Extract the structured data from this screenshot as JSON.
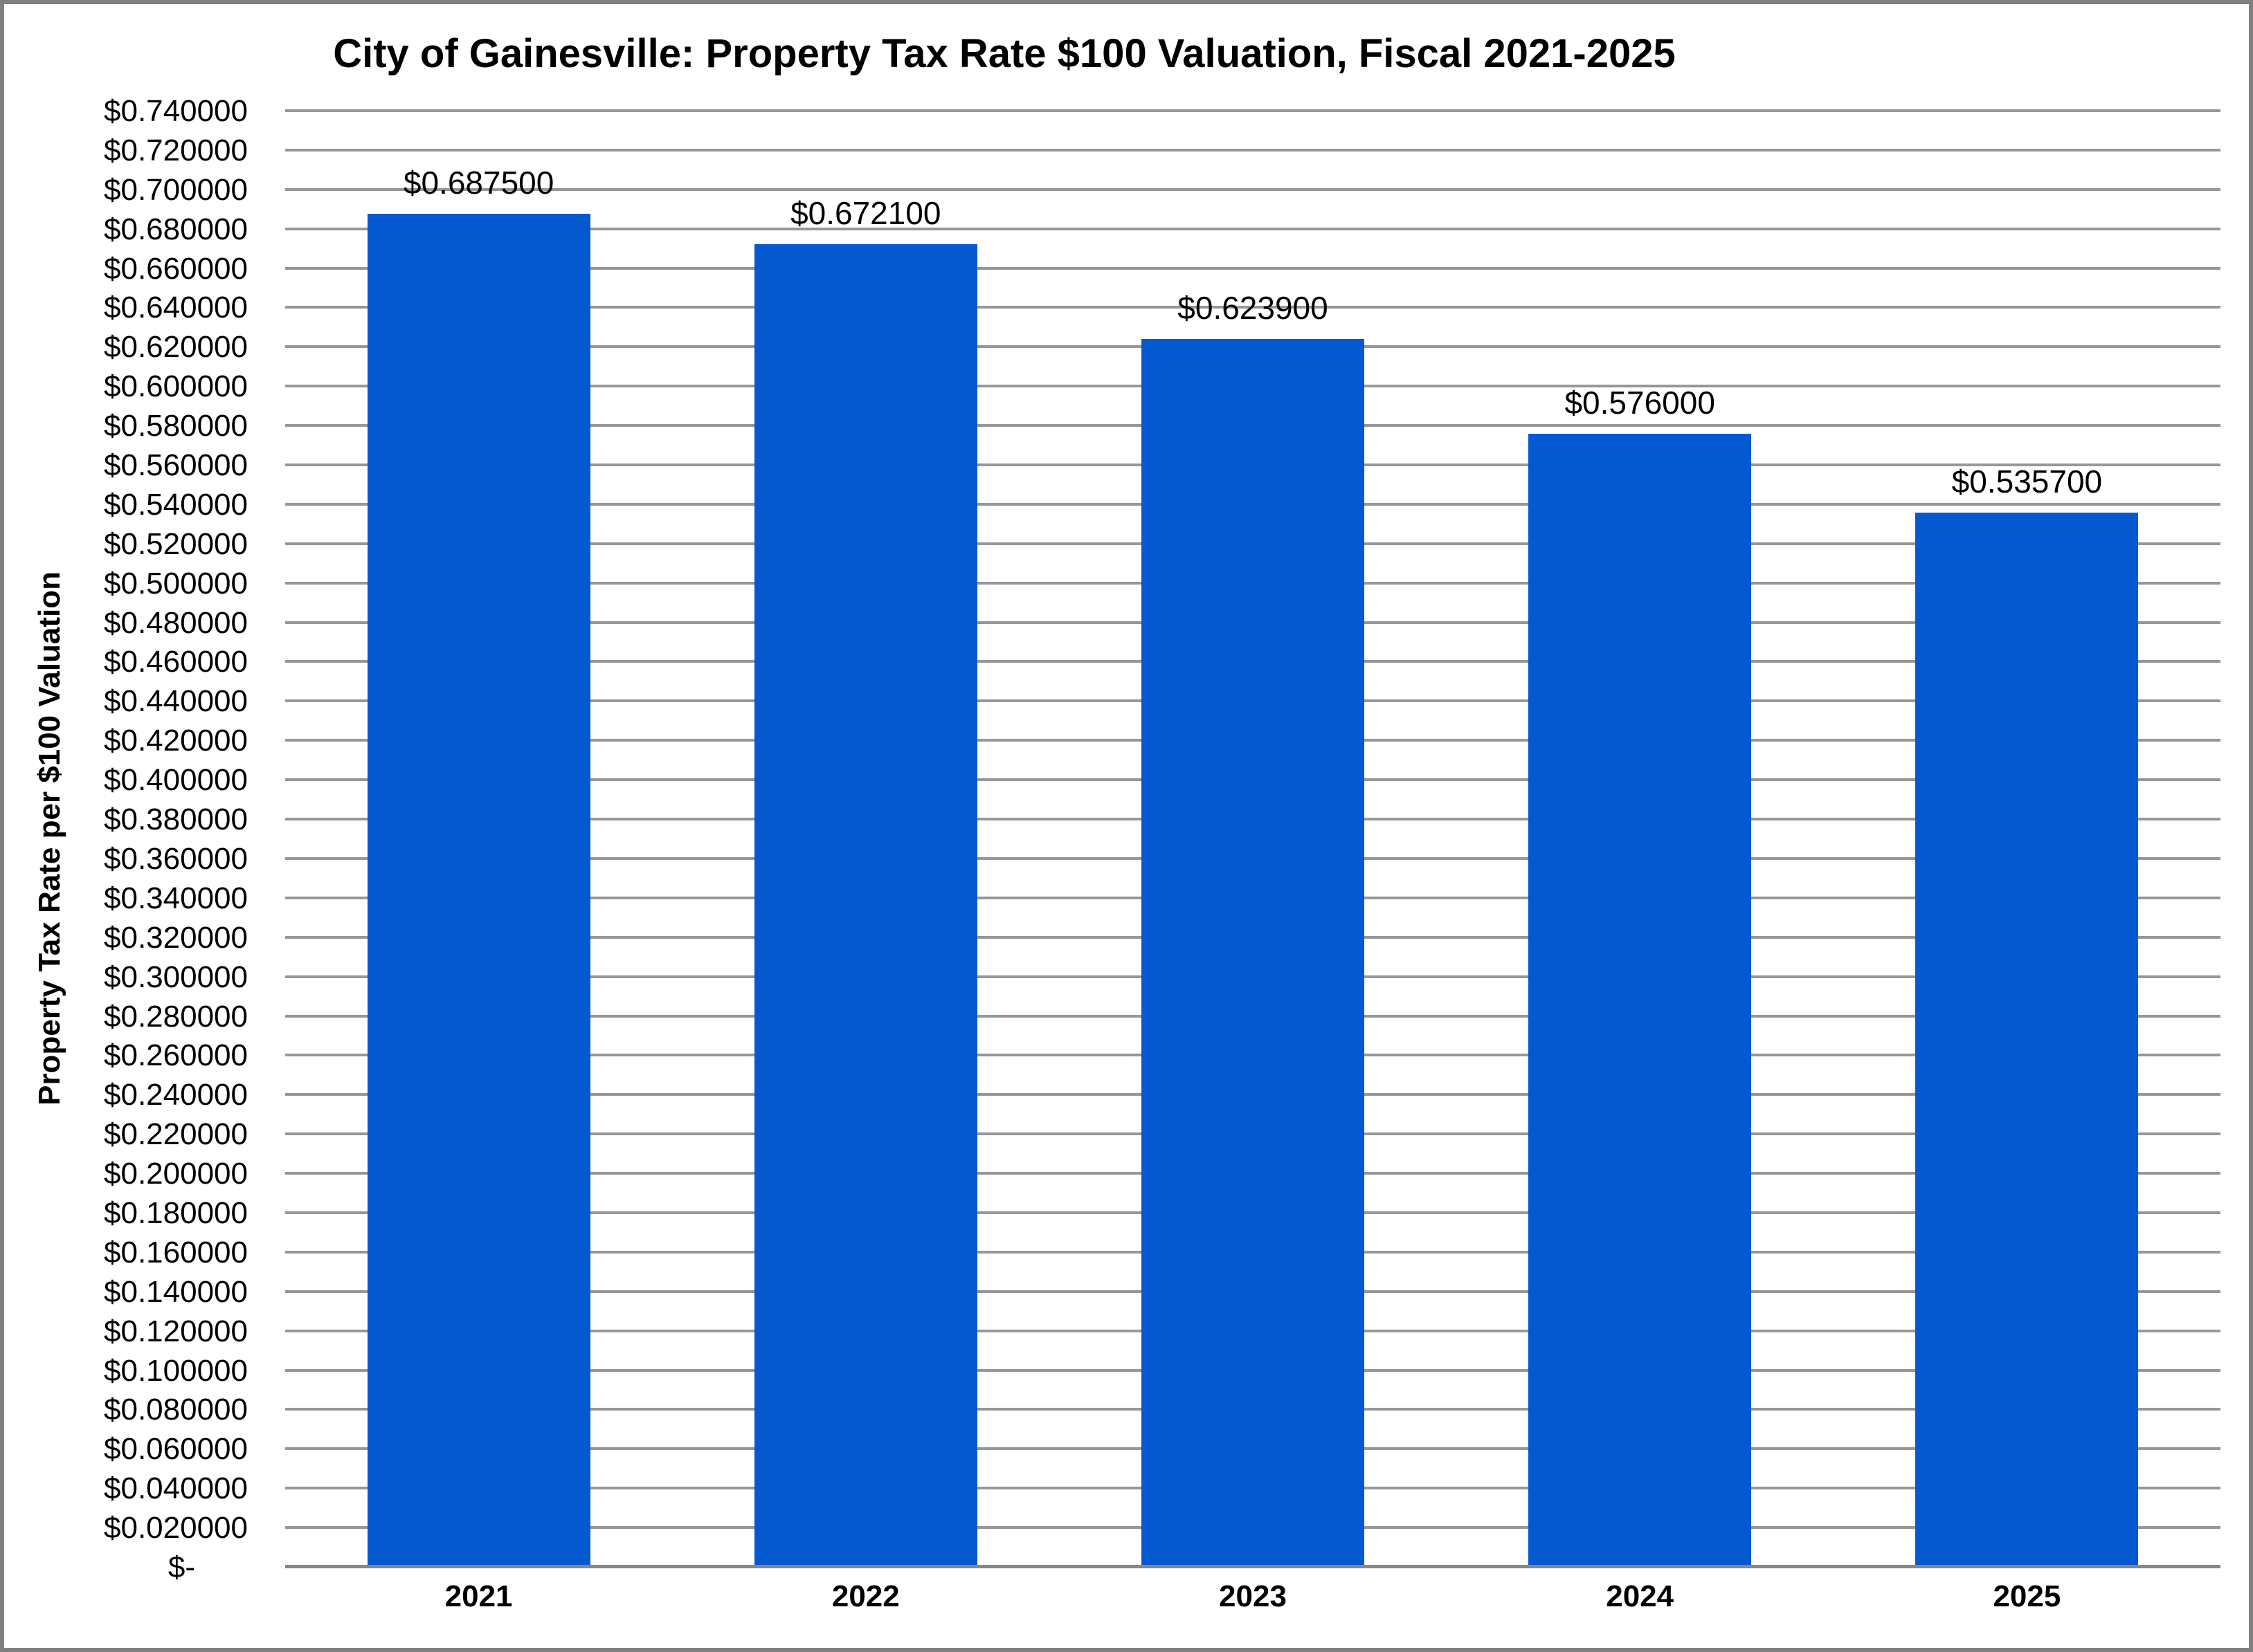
{
  "chart_data": {
    "type": "bar",
    "title": "City of Gainesville: Property Tax Rate $100 Valuation, Fiscal 2021-2025",
    "ylabel": "Property Tax Rate per $100 Valuation",
    "xlabel": "",
    "categories": [
      "2021",
      "2022",
      "2023",
      "2024",
      "2025"
    ],
    "values": [
      0.6875,
      0.6721,
      0.6239,
      0.576,
      0.5357
    ],
    "data_labels": [
      "$0.687500",
      "$0.672100",
      "$0.623900",
      "$0.576000",
      "$0.535700"
    ],
    "ylim": [
      0,
      0.74
    ],
    "ytick_step": 0.02,
    "grid": "horizontal",
    "legend": "none",
    "bar_color": "#0459D0",
    "gridline_color": "#979797",
    "axis_line_color": "#878787",
    "frame_border_color": "#808080",
    "yticks": [
      {
        "label": "$0.740000",
        "value": 0.74
      },
      {
        "label": "$0.720000",
        "value": 0.72
      },
      {
        "label": "$0.700000",
        "value": 0.7
      },
      {
        "label": "$0.680000",
        "value": 0.68
      },
      {
        "label": "$0.660000",
        "value": 0.66
      },
      {
        "label": "$0.640000",
        "value": 0.64
      },
      {
        "label": "$0.620000",
        "value": 0.62
      },
      {
        "label": "$0.600000",
        "value": 0.6
      },
      {
        "label": "$0.580000",
        "value": 0.58
      },
      {
        "label": "$0.560000",
        "value": 0.56
      },
      {
        "label": "$0.540000",
        "value": 0.54
      },
      {
        "label": "$0.520000",
        "value": 0.52
      },
      {
        "label": "$0.500000",
        "value": 0.5
      },
      {
        "label": "$0.480000",
        "value": 0.48
      },
      {
        "label": "$0.460000",
        "value": 0.46
      },
      {
        "label": "$0.440000",
        "value": 0.44
      },
      {
        "label": "$0.420000",
        "value": 0.42
      },
      {
        "label": "$0.400000",
        "value": 0.4
      },
      {
        "label": "$0.380000",
        "value": 0.38
      },
      {
        "label": "$0.360000",
        "value": 0.36
      },
      {
        "label": "$0.340000",
        "value": 0.34
      },
      {
        "label": "$0.320000",
        "value": 0.32
      },
      {
        "label": "$0.300000",
        "value": 0.3
      },
      {
        "label": "$0.280000",
        "value": 0.28
      },
      {
        "label": "$0.260000",
        "value": 0.26
      },
      {
        "label": "$0.240000",
        "value": 0.24
      },
      {
        "label": "$0.220000",
        "value": 0.22
      },
      {
        "label": "$0.200000",
        "value": 0.2
      },
      {
        "label": "$0.180000",
        "value": 0.18
      },
      {
        "label": "$0.160000",
        "value": 0.16
      },
      {
        "label": "$0.140000",
        "value": 0.14
      },
      {
        "label": "$0.120000",
        "value": 0.12
      },
      {
        "label": "$0.100000",
        "value": 0.1
      },
      {
        "label": "$0.080000",
        "value": 0.08
      },
      {
        "label": "$0.060000",
        "value": 0.06
      },
      {
        "label": "$0.040000",
        "value": 0.04
      },
      {
        "label": "$0.020000",
        "value": 0.02
      },
      {
        "label": "$-",
        "value": 0
      }
    ]
  }
}
